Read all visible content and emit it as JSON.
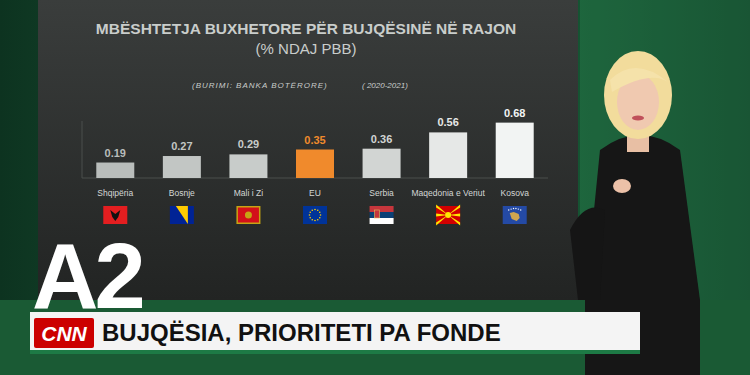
{
  "chart_data": {
    "type": "bar",
    "title": "MBËSHTETJA BUXHETORE PËR BUJQËSINË NË RAJON",
    "subtitle": "(% NDAJ PBB)",
    "source": "(BURIMI: BANKA BOTËRORE)",
    "period": "( 2020-2021)",
    "categories": [
      "Shqipëria",
      "Bosnje",
      "Mali i Zi",
      "EU",
      "Serbia",
      "Maqedonia e Veriut",
      "Kosova"
    ],
    "values": [
      0.19,
      0.27,
      0.29,
      0.35,
      0.36,
      0.56,
      0.68
    ],
    "colors": [
      "#b9bdbb",
      "#c2c6c4",
      "#c8ccca",
      "#f08a2c",
      "#d2d5d3",
      "#e6e8e7",
      "#f2f4f3"
    ],
    "ylim": [
      0,
      0.7
    ],
    "grid": false,
    "data_labels": true,
    "tick_labels": "x"
  },
  "overlay": {
    "channel_logo": "A2",
    "network_logo": "CNN",
    "headline": "BUJQËSIA, PRIORITETI PA FONDE"
  }
}
